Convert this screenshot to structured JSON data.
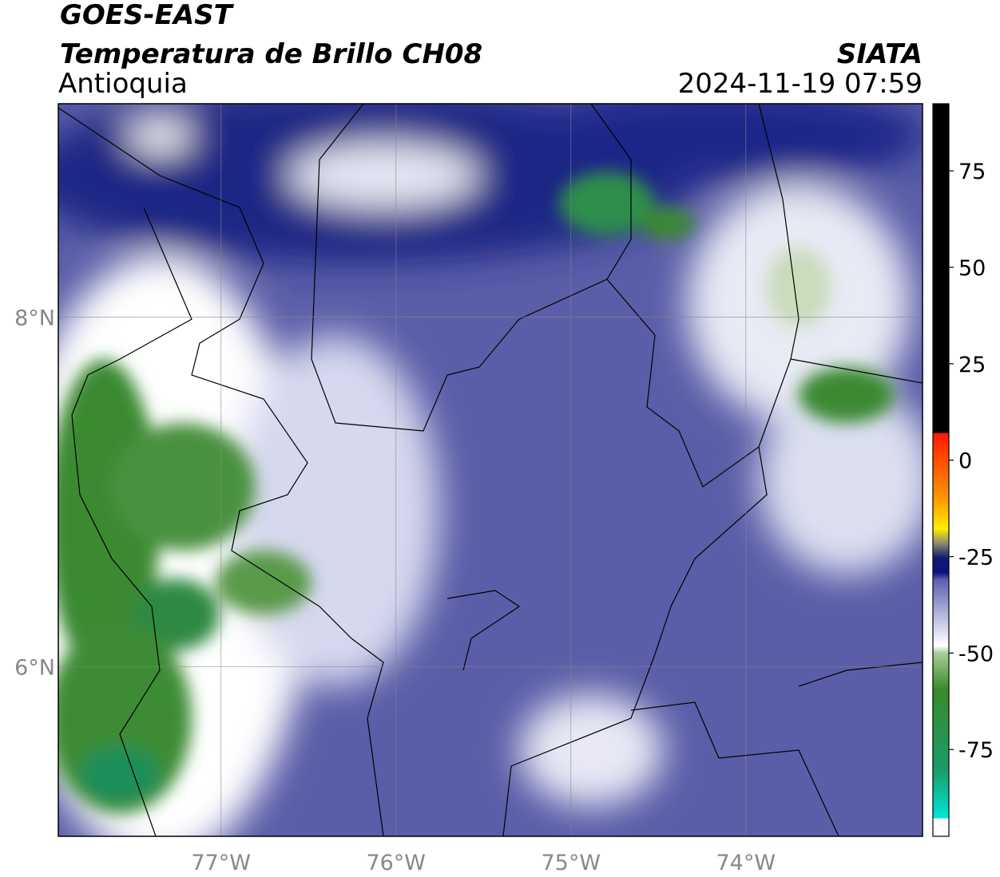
{
  "header": {
    "title": "GOES-EAST",
    "subtitle": "Temperatura de Brillo CH08",
    "region": "Antioquia",
    "source": "SIATA",
    "timestamp": "2024-11-19 07:59"
  },
  "map": {
    "xlim": [
      -77.93,
      -72.99
    ],
    "ylim": [
      5.03,
      9.22
    ],
    "xticks": [
      {
        "value": -77,
        "label": "77°W"
      },
      {
        "value": -76,
        "label": "76°W"
      },
      {
        "value": -75,
        "label": "75°W"
      },
      {
        "value": -74,
        "label": "74°W"
      }
    ],
    "yticks": [
      {
        "value": 8,
        "label": "8°N"
      },
      {
        "value": 6,
        "label": "6°N"
      }
    ],
    "grid": true
  },
  "colorbar": {
    "lim": [
      -97.5,
      92.4
    ],
    "ticks": [
      75,
      50,
      25,
      0,
      -25,
      -50,
      -75
    ]
  }
}
